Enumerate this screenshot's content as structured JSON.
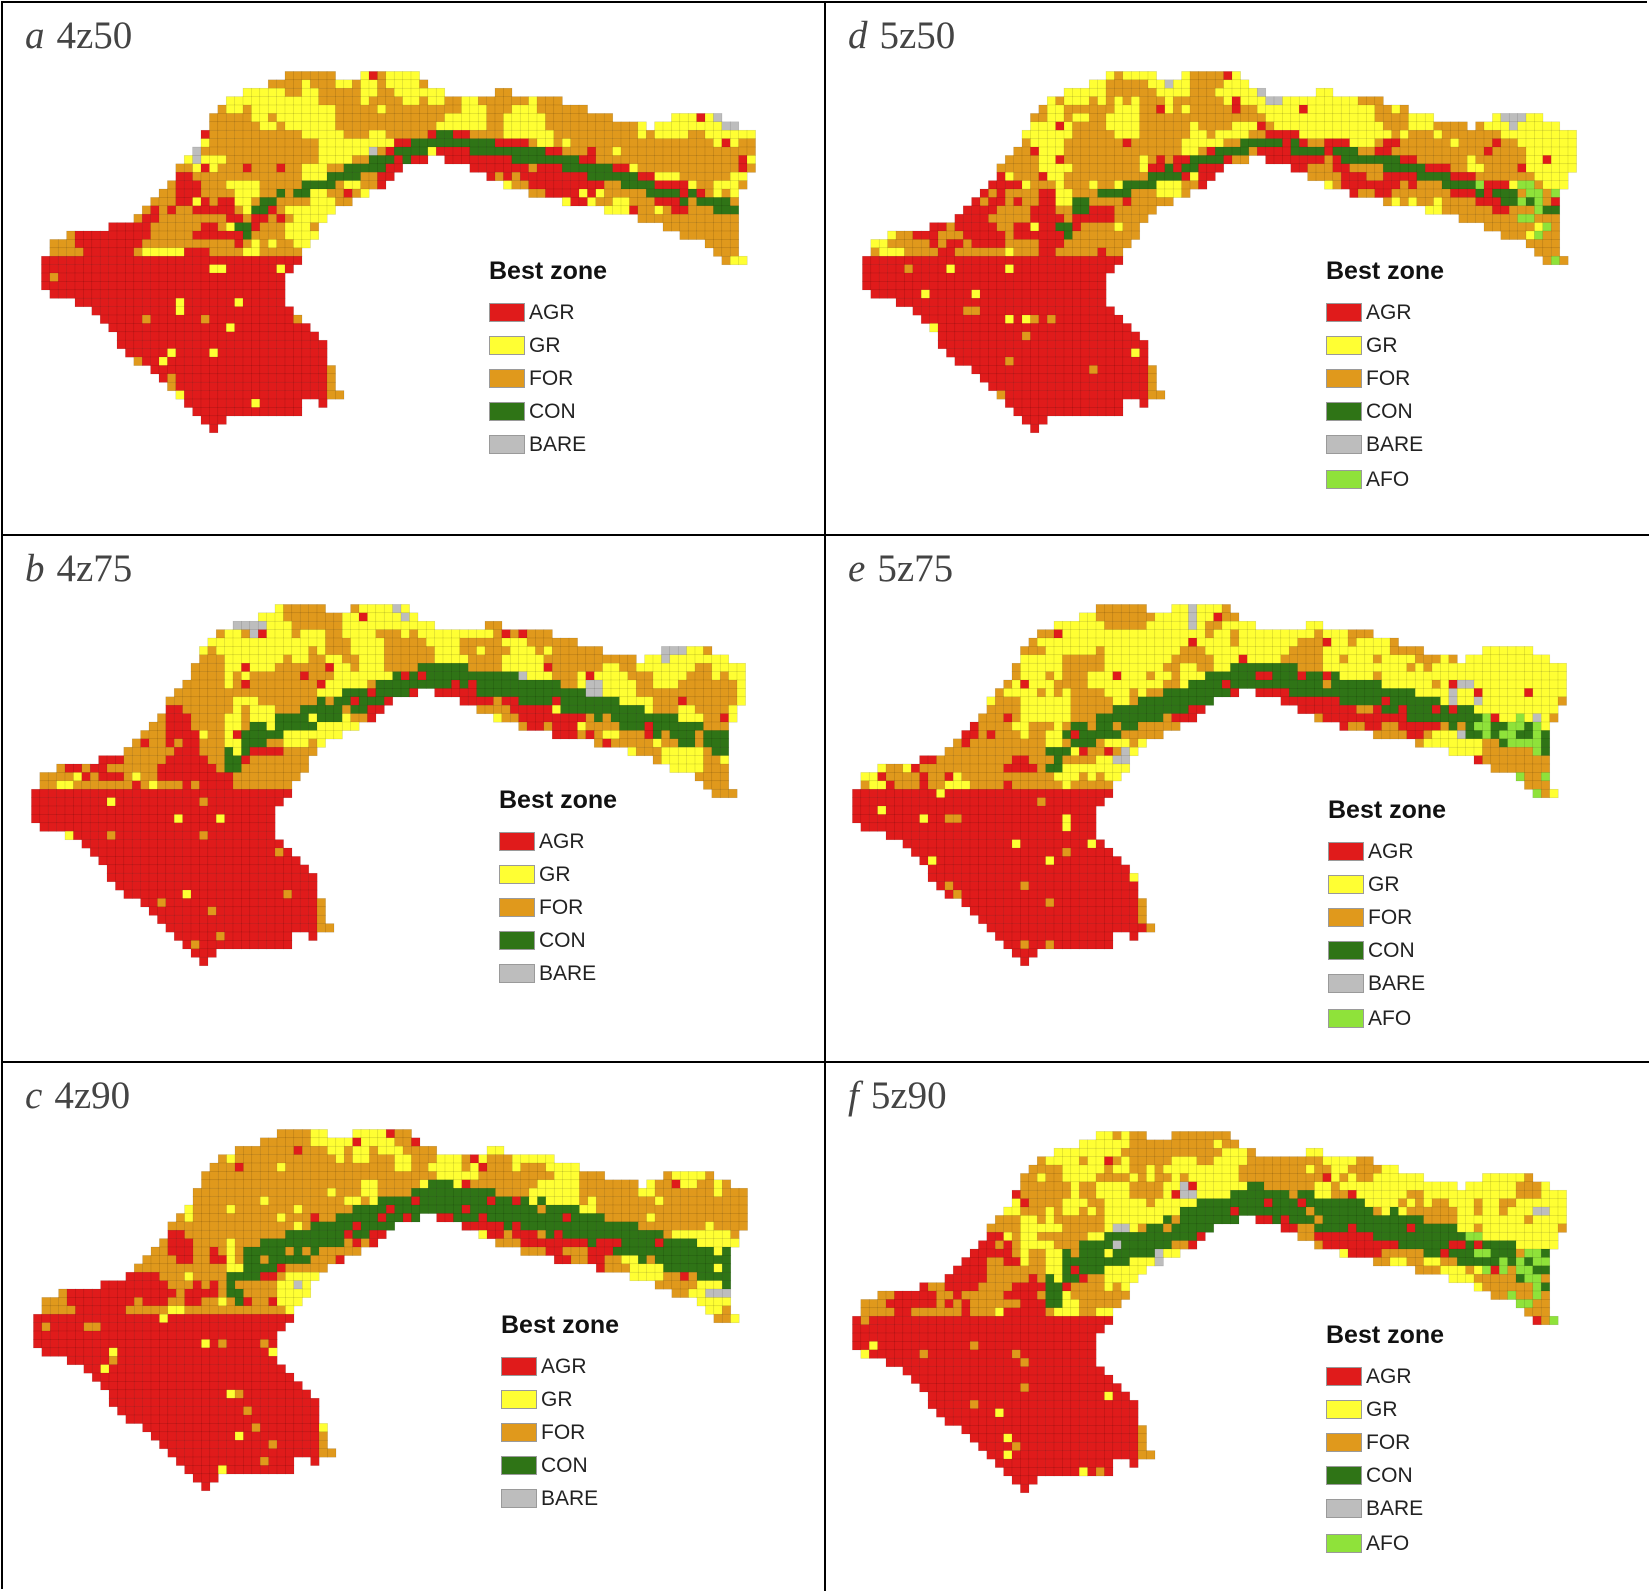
{
  "classes": [
    {
      "code": "AGR",
      "color": "#e01b1b"
    },
    {
      "code": "GR",
      "color": "#ffff33"
    },
    {
      "code": "FOR",
      "color": "#e0991c"
    },
    {
      "code": "CON",
      "color": "#2f7416"
    },
    {
      "code": "BARE",
      "color": "#bdbdbd"
    },
    {
      "code": "AFO",
      "color": "#8fe23a"
    }
  ],
  "legend_title": "Best zone",
  "panels": [
    {
      "letter": "a",
      "name": "4z50",
      "classes": [
        "AGR",
        "GR",
        "FOR",
        "CON",
        "BARE"
      ]
    },
    {
      "letter": "d",
      "name": "5z50",
      "classes": [
        "AGR",
        "GR",
        "FOR",
        "CON",
        "BARE",
        "AFO"
      ]
    },
    {
      "letter": "b",
      "name": "4z75",
      "classes": [
        "AGR",
        "GR",
        "FOR",
        "CON",
        "BARE"
      ]
    },
    {
      "letter": "e",
      "name": "5z75",
      "classes": [
        "AGR",
        "GR",
        "FOR",
        "CON",
        "BARE",
        "AFO"
      ]
    },
    {
      "letter": "c",
      "name": "4z90",
      "classes": [
        "AGR",
        "GR",
        "FOR",
        "CON",
        "BARE"
      ]
    },
    {
      "letter": "f",
      "name": "5z90",
      "classes": [
        "AGR",
        "GR",
        "FOR",
        "CON",
        "BARE",
        "AFO"
      ]
    }
  ]
}
